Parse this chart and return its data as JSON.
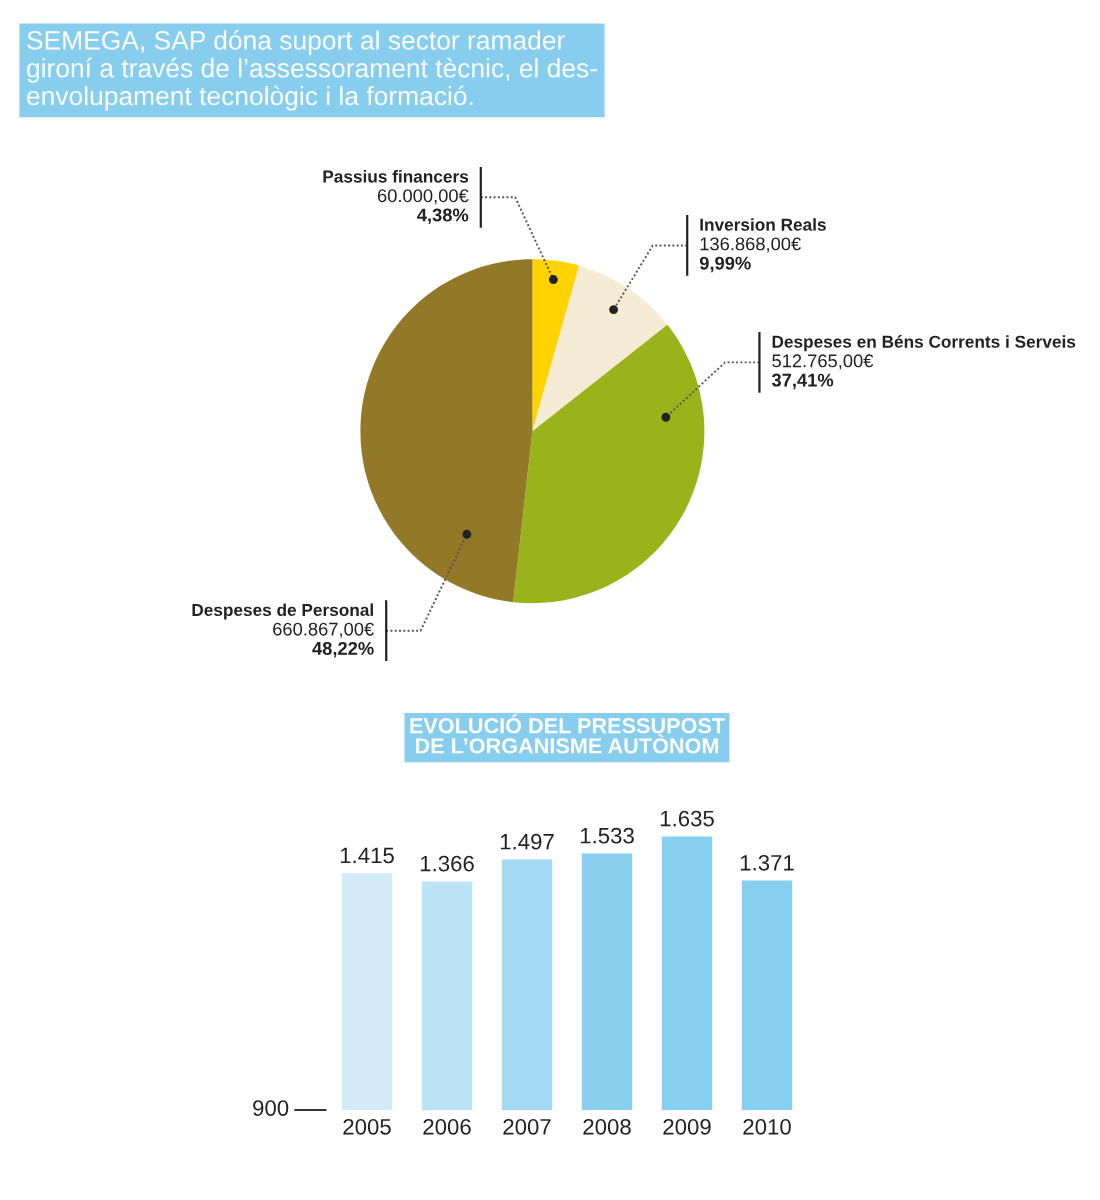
{
  "chart_data": [
    {
      "type": "pie",
      "title": "SEMEGA, SAP dóna suport al sector ramader\ngironí a través de l’assessorament tècnic, el des-\nenvolupament tecnològic i la formació.",
      "categories": [
        "Passius financers",
        "Inversion Reals",
        "Despeses en Béns Corrents i Serveis",
        "Despeses de Personal"
      ],
      "values": [
        60000,
        136868,
        512765,
        660867
      ],
      "colors": [
        "#ffd200",
        "#f6ebd4",
        "#9ab31b",
        "#937827"
      ],
      "value_labels": [
        "60.000,00€\n4,38%",
        "136.868,00€\n9,99%",
        "512.765,00€\n37,41%",
        "660.867,00€\n48,22%"
      ]
    },
    {
      "type": "bar",
      "title": "EVOLUCIÓ DEL PRESSUPOST\nDE L’ORGANISME AUTÒNOM",
      "categories": [
        "2005",
        "2006",
        "2007",
        "2008",
        "2009",
        "2010"
      ],
      "values": [
        1415,
        1366,
        1497,
        1533,
        1635,
        1371
      ],
      "colors": [
        "#d3eaf8",
        "#bde3f6",
        "#a3d9f2",
        "#88d0ee",
        "#86cfee",
        "#86cfee"
      ],
      "value_labels": [
        "1.415",
        "1.366",
        "1.497",
        "1.533",
        "1.635",
        "1.371"
      ],
      "annotations": [
        "900"
      ]
    }
  ]
}
